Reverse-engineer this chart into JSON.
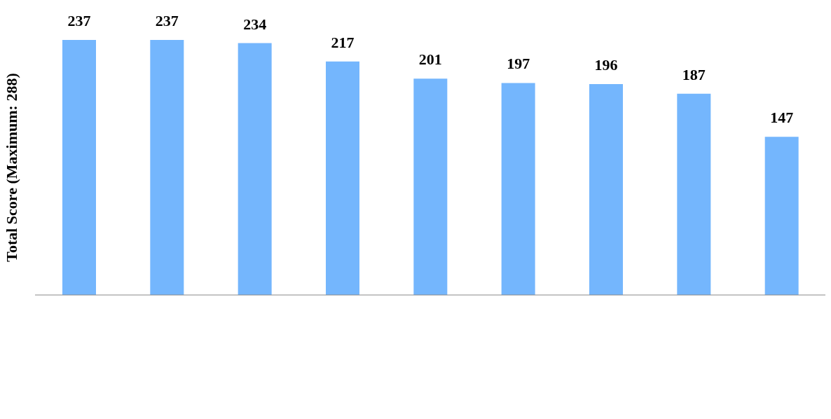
{
  "chart_data": {
    "type": "bar",
    "ylabel": "Total Score (Maximum: 288)",
    "categories": [
      null,
      null,
      null,
      null,
      null,
      null,
      null,
      null,
      null
    ],
    "values": [
      237,
      237,
      234,
      217,
      201,
      197,
      196,
      187,
      147
    ],
    "color": "#74b6fd",
    "data_labels": true
  }
}
